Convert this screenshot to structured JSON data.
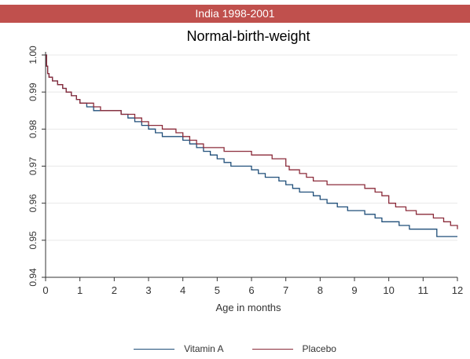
{
  "banner": "India 1998-2001",
  "colors": {
    "banner_bg": "#c0504d",
    "series_1": "#1f4e79",
    "series_2": "#8b2b3a"
  },
  "chart_data": {
    "type": "line",
    "step": true,
    "title": "Normal-birth-weight",
    "xlabel": "Age in months",
    "ylabel": "",
    "xlim": [
      0,
      12
    ],
    "ylim": [
      0.94,
      1.0
    ],
    "xticks": [
      0,
      1,
      2,
      3,
      4,
      5,
      6,
      7,
      8,
      9,
      10,
      11,
      12
    ],
    "yticks": [
      0.94,
      0.95,
      0.96,
      0.97,
      0.98,
      0.99,
      1.0
    ],
    "ytick_labels": [
      "0.94",
      "0.95",
      "0.96",
      "0.97",
      "0.98",
      "0.99",
      "1.00"
    ],
    "grid": "horizontal",
    "legend": "bottom",
    "series": [
      {
        "name": "Vitamin A",
        "color": "#1f4e79",
        "x": [
          0,
          0.03,
          0.06,
          0.1,
          0.2,
          0.35,
          0.5,
          0.6,
          0.75,
          0.9,
          1.0,
          1.2,
          1.4,
          1.6,
          2.0,
          2.2,
          2.4,
          2.6,
          2.8,
          3.0,
          3.2,
          3.4,
          4.0,
          4.2,
          4.4,
          4.6,
          4.8,
          5.0,
          5.2,
          5.4,
          5.6,
          5.8,
          6.0,
          6.2,
          6.4,
          6.6,
          6.8,
          7.0,
          7.2,
          7.4,
          7.6,
          7.8,
          8.0,
          8.2,
          8.5,
          8.8,
          9.0,
          9.3,
          9.6,
          9.8,
          10.0,
          10.3,
          10.6,
          11.0,
          11.4,
          12.0
        ],
        "y": [
          1.0,
          0.997,
          0.995,
          0.994,
          0.993,
          0.992,
          0.991,
          0.99,
          0.989,
          0.988,
          0.987,
          0.986,
          0.985,
          0.985,
          0.985,
          0.984,
          0.983,
          0.982,
          0.981,
          0.98,
          0.979,
          0.978,
          0.977,
          0.976,
          0.975,
          0.974,
          0.973,
          0.972,
          0.971,
          0.97,
          0.97,
          0.97,
          0.969,
          0.968,
          0.967,
          0.967,
          0.966,
          0.965,
          0.964,
          0.963,
          0.963,
          0.962,
          0.961,
          0.96,
          0.959,
          0.958,
          0.958,
          0.957,
          0.956,
          0.955,
          0.955,
          0.954,
          0.953,
          0.953,
          0.951,
          0.951
        ]
      },
      {
        "name": "Placebo",
        "color": "#8b2b3a",
        "x": [
          0,
          0.03,
          0.06,
          0.1,
          0.2,
          0.35,
          0.5,
          0.6,
          0.75,
          0.9,
          1.0,
          1.2,
          1.4,
          1.6,
          2.0,
          2.2,
          2.4,
          2.6,
          2.8,
          3.0,
          3.2,
          3.4,
          3.8,
          4.0,
          4.2,
          4.4,
          4.6,
          4.8,
          5.0,
          5.2,
          5.5,
          6.0,
          6.3,
          6.6,
          6.8,
          7.0,
          7.1,
          7.4,
          7.6,
          7.8,
          8.0,
          8.2,
          8.5,
          9.0,
          9.3,
          9.6,
          9.8,
          10.0,
          10.2,
          10.5,
          10.8,
          11.0,
          11.3,
          11.6,
          11.8,
          12.0
        ],
        "y": [
          1.0,
          0.997,
          0.995,
          0.994,
          0.993,
          0.992,
          0.991,
          0.99,
          0.989,
          0.988,
          0.987,
          0.987,
          0.986,
          0.985,
          0.985,
          0.984,
          0.984,
          0.983,
          0.982,
          0.981,
          0.981,
          0.98,
          0.979,
          0.978,
          0.977,
          0.976,
          0.975,
          0.975,
          0.975,
          0.974,
          0.974,
          0.973,
          0.973,
          0.972,
          0.972,
          0.97,
          0.969,
          0.968,
          0.967,
          0.966,
          0.966,
          0.965,
          0.965,
          0.965,
          0.964,
          0.963,
          0.962,
          0.96,
          0.959,
          0.958,
          0.957,
          0.957,
          0.956,
          0.955,
          0.954,
          0.953
        ]
      }
    ]
  }
}
